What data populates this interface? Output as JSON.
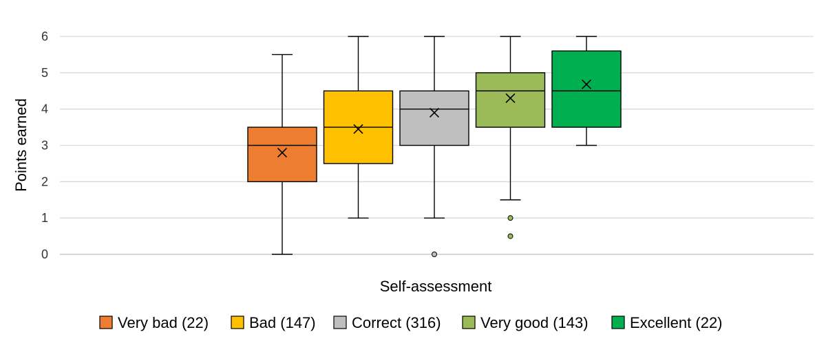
{
  "chart_data": {
    "type": "box",
    "title": "",
    "xlabel": "Self-assessment",
    "ylabel": "Points earned",
    "ylim": [
      0,
      6
    ],
    "yticks": [
      "0",
      "1",
      "2",
      "3",
      "4",
      "5",
      "6"
    ],
    "grid": true,
    "legend_position": "bottom",
    "series": [
      {
        "name": "Very bad (22)",
        "color": "#ED7D31",
        "min": 0,
        "q1": 2,
        "median": 3,
        "q3": 3.5,
        "max": 5.5,
        "mean": 2.8,
        "outliers": [],
        "outlier_color": "#ED7D31"
      },
      {
        "name": "Bad (147)",
        "color": "#FFC000",
        "min": 1,
        "q1": 2.5,
        "median": 3.5,
        "q3": 4.5,
        "max": 6,
        "mean": 3.45,
        "outliers": [],
        "outlier_color": "#FFC000"
      },
      {
        "name": "Correct (316)",
        "color": "#BFBFBF",
        "min": 1,
        "q1": 3,
        "median": 4,
        "q3": 4.5,
        "max": 6,
        "mean": 3.9,
        "outliers": [
          0
        ],
        "outlier_color": "#BFBFBF"
      },
      {
        "name": "Very good (143)",
        "color": "#9BBB59",
        "min": 1.5,
        "q1": 3.5,
        "median": 4.5,
        "q3": 5,
        "max": 6,
        "mean": 4.3,
        "outliers": [
          1,
          0.5
        ],
        "outlier_color": "#9BBB59"
      },
      {
        "name": "Excellent (22)",
        "color": "#00B050",
        "min": 3,
        "q1": 3.5,
        "median": 4.5,
        "q3": 5.6,
        "max": 6,
        "mean": 4.68,
        "outliers": [],
        "outlier_color": "#00B050"
      }
    ]
  }
}
